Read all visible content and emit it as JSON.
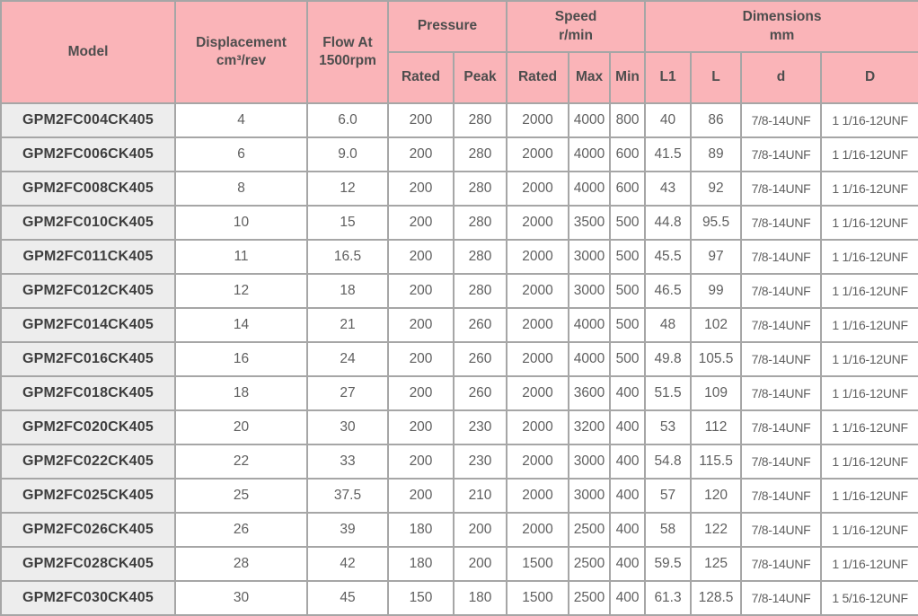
{
  "colors": {
    "header_bg": "#FAB4B8",
    "model_col_bg": "#EDEDED",
    "grid_line": "#A6A6A6",
    "outer_border": "#8C8C8C",
    "header_text": "#4D4D4D",
    "data_text": "#5F5F5F",
    "model_text": "#3E3E3E"
  },
  "table": {
    "header": {
      "model": "Model",
      "displacement": "Displacement\ncm³/rev",
      "flow": "Flow At\n1500rpm",
      "pressure_group": "Pressure",
      "speed_group": "Speed\nr/min",
      "dimensions_group": "Dimensions\nmm",
      "sub": {
        "pressure_rated": "Rated",
        "pressure_peak": "Peak",
        "speed_rated": "Rated",
        "speed_max": "Max",
        "speed_min": "Min",
        "l1": "L1",
        "l": "L",
        "d": "d",
        "D": "D"
      }
    },
    "rows": [
      [
        "GPM2FC004CK405",
        "4",
        "6.0",
        "200",
        "280",
        "2000",
        "4000",
        "800",
        "40",
        "86",
        "7/8-14UNF",
        "1 1/16-12UNF"
      ],
      [
        "GPM2FC006CK405",
        "6",
        "9.0",
        "200",
        "280",
        "2000",
        "4000",
        "600",
        "41.5",
        "89",
        "7/8-14UNF",
        "1 1/16-12UNF"
      ],
      [
        "GPM2FC008CK405",
        "8",
        "12",
        "200",
        "280",
        "2000",
        "4000",
        "600",
        "43",
        "92",
        "7/8-14UNF",
        "1 1/16-12UNF"
      ],
      [
        "GPM2FC010CK405",
        "10",
        "15",
        "200",
        "280",
        "2000",
        "3500",
        "500",
        "44.8",
        "95.5",
        "7/8-14UNF",
        "1 1/16-12UNF"
      ],
      [
        "GPM2FC011CK405",
        "11",
        "16.5",
        "200",
        "280",
        "2000",
        "3000",
        "500",
        "45.5",
        "97",
        "7/8-14UNF",
        "1 1/16-12UNF"
      ],
      [
        "GPM2FC012CK405",
        "12",
        "18",
        "200",
        "280",
        "2000",
        "3000",
        "500",
        "46.5",
        "99",
        "7/8-14UNF",
        "1 1/16-12UNF"
      ],
      [
        "GPM2FC014CK405",
        "14",
        "21",
        "200",
        "260",
        "2000",
        "4000",
        "500",
        "48",
        "102",
        "7/8-14UNF",
        "1 1/16-12UNF"
      ],
      [
        "GPM2FC016CK405",
        "16",
        "24",
        "200",
        "260",
        "2000",
        "4000",
        "500",
        "49.8",
        "105.5",
        "7/8-14UNF",
        "1 1/16-12UNF"
      ],
      [
        "GPM2FC018CK405",
        "18",
        "27",
        "200",
        "260",
        "2000",
        "3600",
        "400",
        "51.5",
        "109",
        "7/8-14UNF",
        "1 1/16-12UNF"
      ],
      [
        "GPM2FC020CK405",
        "20",
        "30",
        "200",
        "230",
        "2000",
        "3200",
        "400",
        "53",
        "112",
        "7/8-14UNF",
        "1 1/16-12UNF"
      ],
      [
        "GPM2FC022CK405",
        "22",
        "33",
        "200",
        "230",
        "2000",
        "3000",
        "400",
        "54.8",
        "115.5",
        "7/8-14UNF",
        "1 1/16-12UNF"
      ],
      [
        "GPM2FC025CK405",
        "25",
        "37.5",
        "200",
        "210",
        "2000",
        "3000",
        "400",
        "57",
        "120",
        "7/8-14UNF",
        "1 1/16-12UNF"
      ],
      [
        "GPM2FC026CK405",
        "26",
        "39",
        "180",
        "200",
        "2000",
        "2500",
        "400",
        "58",
        "122",
        "7/8-14UNF",
        "1 1/16-12UNF"
      ],
      [
        "GPM2FC028CK405",
        "28",
        "42",
        "180",
        "200",
        "1500",
        "2500",
        "400",
        "59.5",
        "125",
        "7/8-14UNF",
        "1 1/16-12UNF"
      ],
      [
        "GPM2FC030CK405",
        "30",
        "45",
        "150",
        "180",
        "1500",
        "2500",
        "400",
        "61.3",
        "128.5",
        "7/8-14UNF",
        "1 5/16-12UNF"
      ]
    ]
  }
}
